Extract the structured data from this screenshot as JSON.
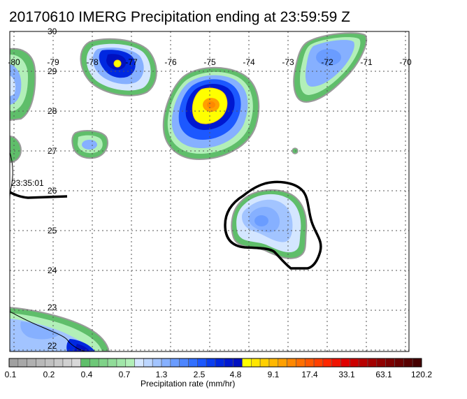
{
  "title": "20170610 IMERG Precipitation ending at 23:59:59 Z",
  "map": {
    "lon_labels": [
      "-80",
      "-79",
      "-78",
      "-77",
      "-76",
      "-75",
      "-74",
      "-73",
      "-72",
      "-71",
      "-70"
    ],
    "lat_labels": [
      "30",
      "29",
      "28",
      "27",
      "26",
      "25",
      "24",
      "23",
      "22"
    ],
    "swath_time": "23:35:01"
  },
  "colorbar": {
    "title": "Precipitation rate (mm/hr)",
    "tick_labels": [
      "0.1",
      "0.2",
      "0.4",
      "0.7",
      "1.3",
      "2.5",
      "4.8",
      "9.1",
      "17.4",
      "33.1",
      "63.1",
      "120.2"
    ],
    "colors": [
      "#a0a0a0",
      "#a8a8a8",
      "#b0b0b0",
      "#b8b8b8",
      "#c0c0c0",
      "#c8c8c8",
      "#d0d0d0",
      "#d8d8d8",
      "#5fbe6a",
      "#6ec878",
      "#7fd288",
      "#90dc98",
      "#a0e6a8",
      "#b2efb8",
      "#d4e6ff",
      "#bcd6ff",
      "#a2c4ff",
      "#86b0ff",
      "#6a9cff",
      "#4e86ff",
      "#3270ff",
      "#1c58ff",
      "#0a3ef0",
      "#0028e0",
      "#0018d0",
      "#0010c0",
      "#ffff00",
      "#ffe600",
      "#ffd000",
      "#ffb800",
      "#ffa000",
      "#ff8800",
      "#ff7000",
      "#ff5800",
      "#ff4000",
      "#ff2800",
      "#f01400",
      "#e00000",
      "#cc0000",
      "#b80000",
      "#a40000",
      "#900000",
      "#7c0000",
      "#6a0000",
      "#580000",
      "#460000"
    ]
  }
}
